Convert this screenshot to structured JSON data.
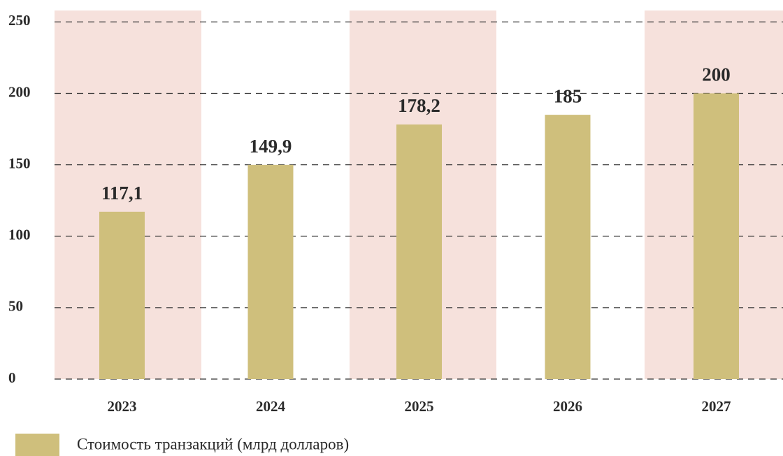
{
  "chart_data": {
    "type": "bar",
    "categories": [
      "2023",
      "2024",
      "2025",
      "2026",
      "2027"
    ],
    "series": [
      {
        "name": "Стоимость транзакций (млрд долларов)",
        "color": "#cfbf7c",
        "values": [
          117.1,
          149.9,
          178.2,
          185,
          200
        ],
        "value_labels": [
          "117,1",
          "149,9",
          "178,2",
          "185",
          "200"
        ]
      }
    ],
    "ylim": [
      0,
      258
    ],
    "yticks": [
      0,
      50,
      100,
      150,
      200,
      250
    ],
    "grid": true,
    "legend": "bottom-left"
  }
}
